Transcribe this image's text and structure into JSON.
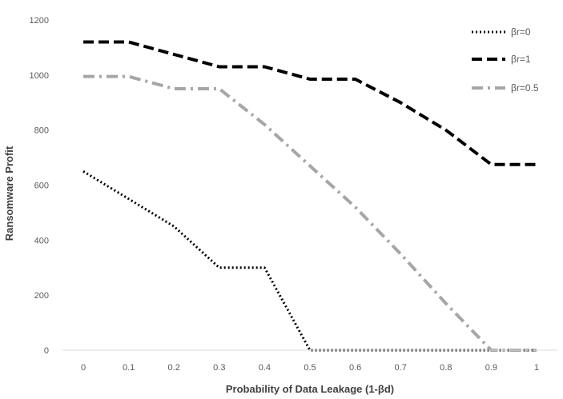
{
  "chart_data": {
    "type": "line",
    "title": "",
    "xlabel": "Probability of Data Leakage (1-βd)",
    "ylabel": "Ransomware Profit",
    "x": [
      0,
      0.1,
      0.2,
      0.3,
      0.4,
      0.5,
      0.6,
      0.7,
      0.8,
      0.9,
      1
    ],
    "x_tick_labels": [
      "0",
      "0.1",
      "0.2",
      "0.3",
      "0.4",
      "0.5",
      "0.6",
      "0.7",
      "0.8",
      "0.9",
      "1"
    ],
    "ylim": [
      0,
      1200
    ],
    "y_ticks": [
      0,
      200,
      400,
      600,
      800,
      1000,
      1200
    ],
    "grid": false,
    "legend_position": "top-right",
    "series": [
      {
        "name": "βr=0",
        "style": "dotted",
        "color": "#000000",
        "values": [
          650,
          550,
          450,
          300,
          300,
          0,
          0,
          0,
          0,
          0,
          0
        ]
      },
      {
        "name": "βr=1",
        "style": "dashed",
        "color": "#000000",
        "values": [
          1120,
          1120,
          1075,
          1030,
          1030,
          985,
          985,
          900,
          800,
          675,
          675
        ]
      },
      {
        "name": "βr=0.5",
        "style": "dashdot",
        "color": "#a6a6a6",
        "values": [
          995,
          995,
          950,
          950,
          820,
          670,
          520,
          350,
          170,
          0,
          0
        ]
      }
    ]
  }
}
